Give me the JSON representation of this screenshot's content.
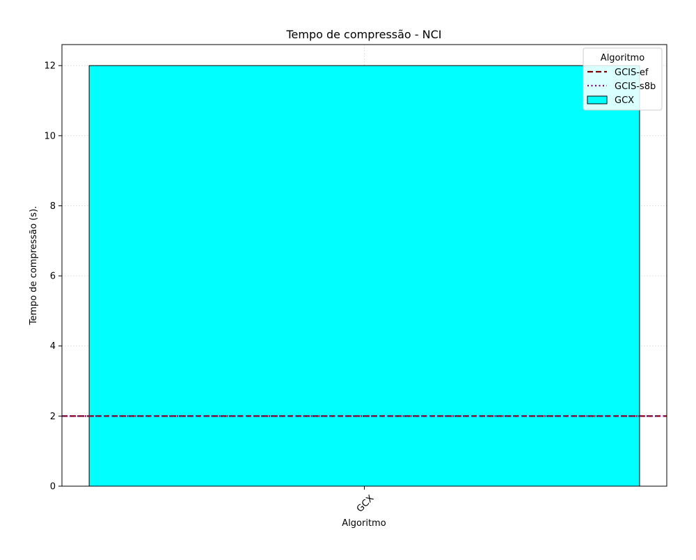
{
  "chart_data": {
    "type": "bar",
    "title": "Tempo de compressão -  NCI",
    "xlabel": "Algoritmo",
    "ylabel": "Tempo de compressão (s).",
    "categories": [
      "GCX"
    ],
    "series": [
      {
        "name": "GCX",
        "values": [
          12.0
        ],
        "color": "#00ffff",
        "edgecolor": "#000000"
      }
    ],
    "reference_lines": [
      {
        "name": "GCIS-ef",
        "value": 2.0,
        "style": "dashed",
        "color": "#800000"
      },
      {
        "name": "GCIS-s8b",
        "value": 2.0,
        "style": "dotted",
        "color": "#800080"
      }
    ],
    "ylim": [
      0,
      12.6
    ],
    "yticks": [
      "0",
      "2",
      "4",
      "6",
      "8",
      "10",
      "12"
    ],
    "xtick_rotation": 45,
    "grid": true,
    "legend": {
      "title": "Algoritmo",
      "position": "top-right",
      "entries": [
        "GCIS-ef",
        "GCIS-s8b",
        "GCX"
      ]
    }
  }
}
